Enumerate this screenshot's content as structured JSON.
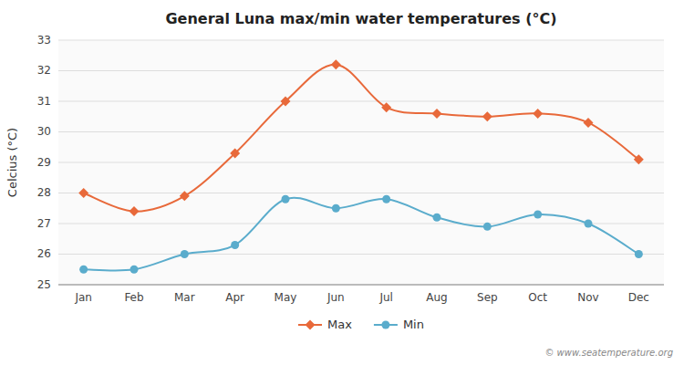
{
  "chart_data": {
    "type": "line",
    "title": "General Luna max/min water temperatures (°C)",
    "ylabel": "Celcius (°C)",
    "categories": [
      "Jan",
      "Feb",
      "Mar",
      "Apr",
      "May",
      "Jun",
      "Jul",
      "Aug",
      "Sep",
      "Oct",
      "Nov",
      "Dec"
    ],
    "series": [
      {
        "name": "Max",
        "color": "#e8693a",
        "marker": "diamond",
        "values": [
          28.0,
          27.4,
          27.9,
          29.3,
          31.0,
          32.2,
          30.8,
          30.6,
          30.5,
          30.6,
          30.3,
          29.1
        ]
      },
      {
        "name": "Min",
        "color": "#5aaccc",
        "marker": "circle",
        "values": [
          25.5,
          25.5,
          26.0,
          26.3,
          27.8,
          27.5,
          27.8,
          27.2,
          26.9,
          27.3,
          27.0,
          26.0
        ]
      }
    ],
    "ylim": [
      25,
      33
    ],
    "yticks": [
      25,
      26,
      27,
      28,
      29,
      30,
      31,
      32,
      33
    ],
    "grid": true,
    "legend": "bottom",
    "annotations": [
      "© www.seatemperature.org"
    ]
  }
}
